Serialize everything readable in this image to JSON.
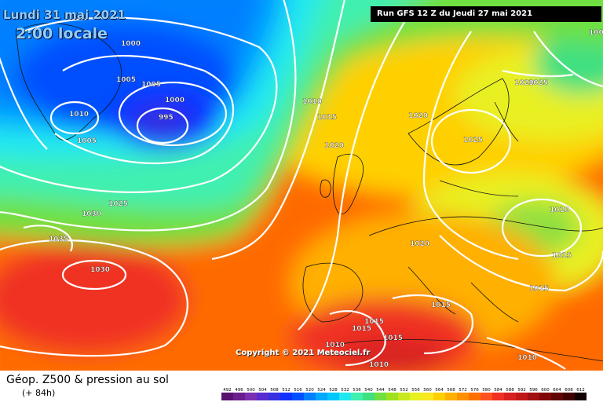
{
  "header": {
    "date": "Lundi 31 mai 2021",
    "time": "2:00 locale",
    "run": "Run GFS 12 Z du Jeudi 27 mai 2021"
  },
  "copyright": "Copyright © 2021 Meteociel.fr",
  "footer": {
    "title": "Géop. Z500 & pression au sol",
    "subtitle": "(+ 84h)"
  },
  "legend": {
    "values": [
      "492",
      "496",
      "500",
      "504",
      "508",
      "512",
      "516",
      "520",
      "524",
      "528",
      "532",
      "536",
      "540",
      "544",
      "548",
      "552",
      "556",
      "560",
      "564",
      "568",
      "572",
      "576",
      "580",
      "584",
      "588",
      "592",
      "596",
      "600",
      "604",
      "608",
      "612"
    ],
    "colors": [
      "#5a1070",
      "#6c1d8e",
      "#7a2fb0",
      "#5a2bd0",
      "#3530e0",
      "#1030ff",
      "#0050ff",
      "#0080ff",
      "#00a8ff",
      "#00c8ff",
      "#20e8f0",
      "#40f0b0",
      "#40e080",
      "#70e040",
      "#a0e020",
      "#c8e820",
      "#e8f020",
      "#f8e820",
      "#ffd000",
      "#ffb000",
      "#ff9000",
      "#ff7000",
      "#ff5020",
      "#f03020",
      "#d82020",
      "#c01818",
      "#a01010",
      "#800808",
      "#600404",
      "#400000",
      "#100000"
    ]
  },
  "isobar_labels": [
    "1000",
    "1005",
    "1005",
    "1000",
    "995",
    "1010",
    "1005",
    "1010",
    "1015",
    "1020",
    "1025",
    "1030",
    "1035",
    "1030",
    "1025",
    "1020",
    "1025",
    "1020",
    "1010",
    "1015",
    "1015",
    "1015",
    "1015",
    "1015",
    "1010",
    "1010",
    "1010",
    "1015",
    "1020",
    "1000"
  ]
}
